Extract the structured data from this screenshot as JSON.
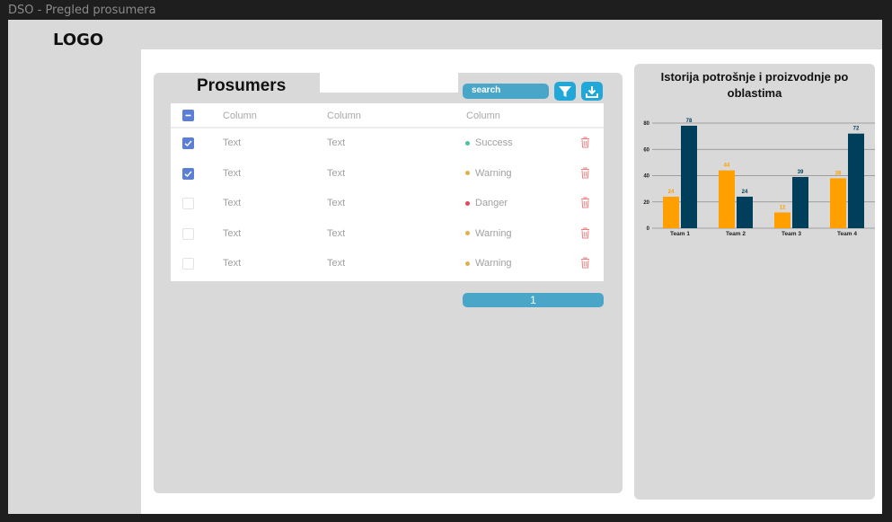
{
  "window": {
    "title": "DSO - Pregled prosumera"
  },
  "logo": "LOGO",
  "panel": {
    "title": "Prosumers"
  },
  "search": {
    "label": "search"
  },
  "table": {
    "headers": [
      "Column",
      "Column",
      "Column"
    ],
    "rows": [
      {
        "checked": true,
        "c1": "Text",
        "c2": "Text",
        "status": "Success",
        "status_color": "#4cc39a"
      },
      {
        "checked": true,
        "c1": "Text",
        "c2": "Text",
        "status": "Warning",
        "status_color": "#e0b04a"
      },
      {
        "checked": false,
        "c1": "Text",
        "c2": "Text",
        "status": "Danger",
        "status_color": "#e2485b"
      },
      {
        "checked": false,
        "c1": "Text",
        "c2": "Text",
        "status": "Warning",
        "status_color": "#e0b04a"
      },
      {
        "checked": false,
        "c1": "Text",
        "c2": "Text",
        "status": "Warning",
        "status_color": "#e0b04a"
      }
    ]
  },
  "pagination": {
    "current": "1"
  },
  "chart_title": "Istorija potrošnje i proizvodnje po oblastima",
  "chart_data": {
    "type": "bar",
    "title": "Istorija potrošnje i proizvodnje po oblastima",
    "categories": [
      "Team 1",
      "Team 2",
      "Team 3",
      "Team 4"
    ],
    "series": [
      {
        "values": [
          24,
          44,
          12,
          38
        ],
        "color": "#ff9f00"
      },
      {
        "values": [
          78,
          24,
          39,
          72
        ],
        "color": "#003f5c"
      }
    ],
    "ylim": [
      0,
      80
    ],
    "yticks": [
      0,
      20,
      40,
      60,
      80
    ],
    "grid": true
  },
  "colors": {
    "accent": "#4aa6c9",
    "icon_button": "#21a7d8",
    "checkbox": "#5b7fd6",
    "trash": "#f08080"
  },
  "icons": {
    "filter": "filter-icon",
    "download": "download-icon",
    "trash": "trash-icon"
  }
}
